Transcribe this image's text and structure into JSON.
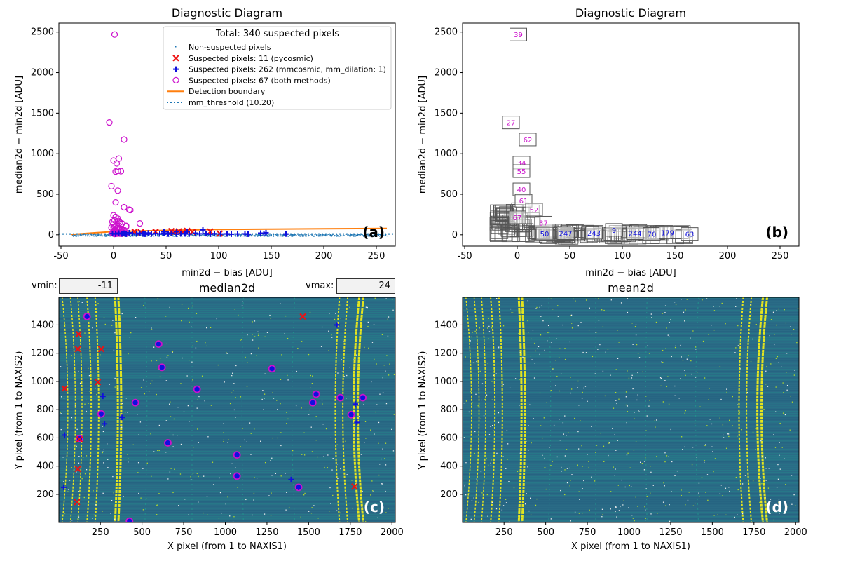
{
  "chart_data": [
    {
      "type": "scatter",
      "panel": "a",
      "title": "Diagnostic Diagram",
      "xlabel": "min2d − bias  [ADU]",
      "ylabel": "median2d − min2d  [ADU]",
      "xlim": [
        -52,
        268
      ],
      "ylim": [
        -140,
        2610
      ],
      "xticks": [
        -50,
        0,
        50,
        100,
        150,
        200,
        250
      ],
      "yticks": [
        0,
        500,
        1000,
        1500,
        2000,
        2500
      ],
      "panel_label": "(a)",
      "legend": {
        "title": "Total: 340 suspected pixels",
        "position": "top-right",
        "entries": [
          {
            "label": "Non-suspected pixels",
            "marker": "dot",
            "color": "#1f77b4"
          },
          {
            "label": "Suspected pixels: 11 (pycosmic)",
            "marker": "x",
            "color": "#ee1111"
          },
          {
            "label": "Suspected pixels: 262 (mmcosmic, mm_dilation: 1)",
            "marker": "plus",
            "color": "#1010dd"
          },
          {
            "label": "Suspected pixels: 67 (both methods)",
            "marker": "circle",
            "color": "#cc11cc"
          },
          {
            "label": "Detection boundary",
            "marker": "line",
            "color": "#ff7f0e"
          },
          {
            "label": "mm_threshold (10.20)",
            "marker": "dotted",
            "color": "#1f77b4"
          }
        ]
      },
      "mm_threshold": 10.2,
      "boundary": {
        "x": [
          -40,
          0,
          50,
          100,
          150,
          200,
          260
        ],
        "y": [
          5,
          40,
          55,
          65,
          70,
          74,
          78
        ]
      },
      "series": [
        {
          "name": "Suspected pixels: 67 (both methods)",
          "marker": "circle",
          "x": [
            1,
            -4,
            10,
            0,
            3,
            5,
            2,
            4,
            7,
            -2,
            4,
            2,
            15,
            16,
            10,
            0,
            2,
            4,
            1,
            5,
            -1,
            6,
            8,
            0,
            3,
            12,
            25,
            2,
            1,
            0,
            -2,
            4,
            3,
            5,
            6,
            8,
            10,
            1,
            2,
            3,
            0,
            1,
            4,
            7,
            2,
            3,
            9,
            11,
            13,
            5,
            6,
            8,
            1,
            2,
            3,
            4,
            0,
            -1,
            2,
            5,
            3,
            1,
            12,
            6,
            4,
            2,
            8
          ],
          "y": [
            2470,
            1385,
            1175,
            915,
            880,
            940,
            780,
            790,
            785,
            600,
            545,
            400,
            310,
            305,
            340,
            240,
            220,
            200,
            180,
            170,
            160,
            150,
            140,
            130,
            120,
            110,
            140,
            105,
            100,
            95,
            90,
            85,
            80,
            75,
            70,
            65,
            60,
            55,
            50,
            45,
            40,
            35,
            30,
            28,
            26,
            24,
            22,
            20,
            18,
            16,
            14,
            12,
            10,
            12,
            14,
            16,
            18,
            20,
            22,
            24,
            26,
            28,
            100,
            30,
            32,
            34,
            36
          ]
        },
        {
          "name": "Suspected pixels: 11 (pycosmic)",
          "marker": "x",
          "x": [
            20,
            26,
            40,
            55,
            58,
            62,
            66,
            70,
            75,
            101,
            92
          ],
          "y": [
            40,
            32,
            38,
            45,
            35,
            42,
            30,
            48,
            36,
            15,
            40
          ]
        },
        {
          "name": "Suspected pixels: 262 (mmcosmic, mm_dilation: 1)",
          "marker": "plus",
          "x": [
            -1,
            2,
            5,
            8,
            10,
            12,
            15,
            18,
            22,
            25,
            28,
            30,
            33,
            36,
            40,
            44,
            48,
            52,
            55,
            60,
            64,
            68,
            72,
            78,
            82,
            88,
            92,
            96,
            102,
            108,
            112,
            118,
            125,
            128,
            140,
            143,
            145,
            164,
            48,
            60,
            70,
            85
          ],
          "y": [
            15,
            10,
            20,
            12,
            18,
            8,
            25,
            14,
            10,
            20,
            12,
            8,
            22,
            10,
            15,
            12,
            20,
            10,
            18,
            8,
            14,
            12,
            10,
            20,
            12,
            15,
            8,
            14,
            10,
            12,
            8,
            10,
            12,
            8,
            20,
            15,
            25,
            10,
            40,
            38,
            42,
            60
          ]
        }
      ]
    },
    {
      "type": "scatter",
      "panel": "b",
      "title": "Diagnostic Diagram",
      "xlabel": "min2d − bias  [ADU]",
      "ylabel": "median2d − min2d  [ADU]",
      "xlim": [
        -52,
        268
      ],
      "ylim": [
        -140,
        2610
      ],
      "xticks": [
        -50,
        0,
        50,
        100,
        150,
        200,
        250
      ],
      "yticks": [
        0,
        500,
        1000,
        1500,
        2000,
        2500
      ],
      "panel_label": "(b)",
      "boxes": [
        {
          "text": "39",
          "x": 1,
          "y": 2470,
          "color": "#cc11cc"
        },
        {
          "text": "27",
          "x": -6,
          "y": 1385,
          "color": "#cc11cc"
        },
        {
          "text": "62",
          "x": 10,
          "y": 1175,
          "color": "#cc11cc"
        },
        {
          "text": "34",
          "x": 4,
          "y": 890,
          "color": "#cc11cc"
        },
        {
          "text": "55",
          "x": 4,
          "y": 785,
          "color": "#cc11cc"
        },
        {
          "text": "40",
          "x": 4,
          "y": 560,
          "color": "#cc11cc"
        },
        {
          "text": "61",
          "x": 6,
          "y": 420,
          "color": "#cc11cc"
        },
        {
          "text": "52",
          "x": 16,
          "y": 310,
          "color": "#cc11cc"
        },
        {
          "text": "67",
          "x": 0,
          "y": 215,
          "color": "#cc11cc"
        },
        {
          "text": "37",
          "x": 25,
          "y": 150,
          "color": "#cc11cc"
        },
        {
          "text": "50",
          "x": 26,
          "y": 15,
          "color": "#1010dd"
        },
        {
          "text": "247",
          "x": 46,
          "y": 20,
          "color": "#1010dd"
        },
        {
          "text": "243",
          "x": 73,
          "y": 25,
          "color": "#1010dd"
        },
        {
          "text": "9",
          "x": 92,
          "y": 60,
          "color": "#1010dd"
        },
        {
          "text": "244",
          "x": 112,
          "y": 20,
          "color": "#1010dd"
        },
        {
          "text": "70",
          "x": 128,
          "y": 10,
          "color": "#1010dd"
        },
        {
          "text": "179",
          "x": 143,
          "y": 30,
          "color": "#1010dd"
        },
        {
          "text": "63",
          "x": 164,
          "y": 10,
          "color": "#1010dd"
        }
      ]
    },
    {
      "type": "heatmap",
      "panel": "c",
      "title": "median2d",
      "xlabel": "X pixel (from 1 to NAXIS1)",
      "ylabel": "Y pixel (from 1 to NAXIS2)",
      "xlim": [
        1,
        2020
      ],
      "ylim": [
        1,
        1596
      ],
      "xticks": [
        250,
        500,
        750,
        1000,
        1250,
        1500,
        1750,
        2000
      ],
      "yticks": [
        200,
        400,
        600,
        800,
        1000,
        1200,
        1400
      ],
      "panel_label": "(c)",
      "markers": {
        "x_red": {
          "x": [
            35,
            120,
            115,
            255,
            235,
            1465,
            125,
            115,
            110,
            1775
          ],
          "y": [
            950,
            1335,
            1230,
            1230,
            995,
            1460,
            590,
            380,
            145,
            255
          ]
        },
        "plus_blue": {
          "x": [
            1670,
            265,
            380,
            1780,
            1790,
            35,
            275,
            30,
            1395,
            1440
          ],
          "y": [
            1400,
            895,
            745,
            840,
            710,
            620,
            700,
            250,
            305,
            250
          ]
        },
        "circle_magenta": {
          "x": [
            170,
            600,
            620,
            1280,
            830,
            460,
            255,
            1545,
            1690,
            1825,
            1525,
            1755,
            655,
            1070,
            1070,
            1440,
            425,
            125
          ],
          "y": [
            1460,
            1265,
            1100,
            1090,
            945,
            850,
            770,
            910,
            885,
            885,
            850,
            765,
            565,
            480,
            330,
            250,
            10,
            595
          ]
        }
      }
    },
    {
      "type": "heatmap",
      "panel": "d",
      "title": "mean2d",
      "xlabel": "X pixel (from 1 to NAXIS1)",
      "ylabel": "Y pixel (from 1 to NAXIS2)",
      "xlim": [
        1,
        2020
      ],
      "ylim": [
        1,
        1596
      ],
      "xticks": [
        250,
        500,
        750,
        1000,
        1250,
        1500,
        1750,
        2000
      ],
      "yticks": [
        200,
        400,
        600,
        800,
        1000,
        1200,
        1400
      ],
      "panel_label": "(d)"
    }
  ],
  "controls": {
    "vmin_label": "vmin:",
    "vmin_value": "-11",
    "vmax_label": "vmax:",
    "vmax_value": "24"
  },
  "colors": {
    "bg_dark": "#2a6b86",
    "bg_mid": "#22908c",
    "stripe": "#e4e51f",
    "speck": "#b8de29"
  }
}
